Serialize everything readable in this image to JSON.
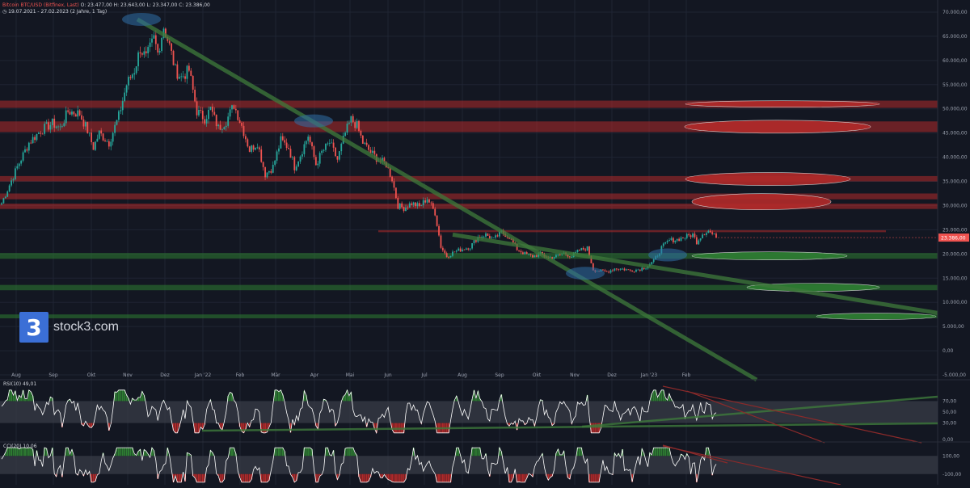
{
  "header": {
    "symbol": "Bitcoin BTC/USD (Bitfinex, Last)",
    "ohlc": "O: 23.477,00  H: 23.643,00  L: 23.347,00  C: 23.386,00",
    "range": "19.07.2021 - 27.02.2023",
    "period": "(2 Jahre, 1 Tag)"
  },
  "logo": {
    "mark": "3",
    "text": "stock3.com"
  },
  "colors": {
    "background": "#131722",
    "up": "#26a69a",
    "down": "#ef5350",
    "resistance": "#b22a2a",
    "support": "#2e7d32",
    "trendline": "#3e7a3b",
    "highlight": "#2f6fa8"
  },
  "chart_data": [
    {
      "type": "candlestick",
      "name": "Bitcoin BTC/USD",
      "x_ticks": [
        "Aug",
        "Sep",
        "Okt",
        "Nov",
        "Dez",
        "Jan '22",
        "Feb",
        "Mär",
        "Apr",
        "Mai",
        "Jun",
        "Jul",
        "Aug",
        "Sep",
        "Okt",
        "Nov",
        "Dez",
        "Jan '23",
        "Feb"
      ],
      "y_ticks": [
        "70.000,00",
        "65.000,00",
        "60.000,00",
        "55.000,00",
        "50.000,00",
        "45.000,00",
        "40.000,00",
        "35.000,00",
        "30.000,00",
        "25.000,00",
        "20.000,00",
        "15.000,00",
        "10.000,00",
        "5.000,00",
        "0,00",
        "-5.000,00"
      ],
      "ylim": [
        -5000,
        72500
      ],
      "last_price": 23386,
      "last_price_label": "23.386,00",
      "x_range": [
        "2021-07-19",
        "2023-02-27"
      ],
      "price_path": [
        [
          0,
          30500
        ],
        [
          8,
          38000
        ],
        [
          14,
          43000
        ],
        [
          20,
          45500
        ],
        [
          26,
          47000
        ],
        [
          30,
          46000
        ],
        [
          34,
          49500
        ],
        [
          40,
          49000
        ],
        [
          44,
          45500
        ],
        [
          47,
          42000
        ],
        [
          50,
          45000
        ],
        [
          55,
          43000
        ],
        [
          60,
          48500
        ],
        [
          64,
          55000
        ],
        [
          68,
          58000
        ],
        [
          71,
          62500
        ],
        [
          74,
          60500
        ],
        [
          78,
          64500
        ],
        [
          80,
          61500
        ],
        [
          83,
          67000
        ],
        [
          86,
          63000
        ],
        [
          89,
          58000
        ],
        [
          92,
          56500
        ],
        [
          96,
          58000
        ],
        [
          100,
          49500
        ],
        [
          104,
          48000
        ],
        [
          107,
          50000
        ],
        [
          111,
          46000
        ],
        [
          115,
          47500
        ],
        [
          119,
          50800
        ],
        [
          123,
          46500
        ],
        [
          127,
          41500
        ],
        [
          131,
          43000
        ],
        [
          135,
          36500
        ],
        [
          139,
          38000
        ],
        [
          143,
          43500
        ],
        [
          147,
          42000
        ],
        [
          150,
          38000
        ],
        [
          153,
          40500
        ],
        [
          157,
          44500
        ],
        [
          161,
          38500
        ],
        [
          164,
          41000
        ],
        [
          168,
          43000
        ],
        [
          172,
          39500
        ],
        [
          176,
          45000
        ],
        [
          179,
          47800
        ],
        [
          182,
          46500
        ],
        [
          185,
          43000
        ],
        [
          189,
          41000
        ],
        [
          193,
          39500
        ],
        [
          197,
          38500
        ],
        [
          200,
          35500
        ],
        [
          203,
          30000
        ],
        [
          206,
          29500
        ],
        [
          210,
          30500
        ],
        [
          214,
          29800
        ],
        [
          218,
          31500
        ],
        [
          222,
          28500
        ],
        [
          225,
          21500
        ],
        [
          228,
          19500
        ],
        [
          232,
          20500
        ],
        [
          236,
          21000
        ],
        [
          240,
          21500
        ],
        [
          244,
          23500
        ],
        [
          248,
          24000
        ],
        [
          252,
          23000
        ],
        [
          256,
          24500
        ],
        [
          260,
          23500
        ],
        [
          264,
          21000
        ],
        [
          268,
          20000
        ],
        [
          272,
          19500
        ],
        [
          276,
          20000
        ],
        [
          280,
          19200
        ],
        [
          284,
          19500
        ],
        [
          288,
          20200
        ],
        [
          292,
          19500
        ],
        [
          296,
          20800
        ],
        [
          300,
          21200
        ],
        [
          303,
          16800
        ],
        [
          306,
          16500
        ],
        [
          310,
          16300
        ],
        [
          314,
          17000
        ],
        [
          318,
          16900
        ],
        [
          322,
          16600
        ],
        [
          326,
          16800
        ],
        [
          330,
          17300
        ],
        [
          334,
          18500
        ],
        [
          338,
          21300
        ],
        [
          342,
          22800
        ],
        [
          346,
          23000
        ],
        [
          350,
          23500
        ],
        [
          354,
          24000
        ],
        [
          356,
          22500
        ],
        [
          359,
          24200
        ],
        [
          362,
          24800
        ],
        [
          366,
          23386
        ]
      ],
      "resistance_zones": [
        {
          "from": 50200,
          "to": 51700
        },
        {
          "from": 45200,
          "to": 47400
        },
        {
          "from": 35000,
          "to": 36100
        },
        {
          "from": 31300,
          "to": 32500
        },
        {
          "from": 29300,
          "to": 30400
        },
        {
          "from": 24500,
          "to": 24900
        }
      ],
      "support_zones": [
        {
          "from": 19000,
          "to": 20200
        },
        {
          "from": 12500,
          "to": 13600
        },
        {
          "from": 6700,
          "to": 7500
        }
      ]
    },
    {
      "type": "line",
      "name": "RSI(10)",
      "label": "RSI(10)",
      "last_value_label": "49,01",
      "y_ticks": [
        "70,00",
        "50,00",
        "30,00",
        "0,00"
      ],
      "ylim": [
        0,
        100
      ],
      "overbought": 70,
      "oversold": 30
    },
    {
      "type": "line",
      "name": "CCI(20)",
      "label": "CCI(20)",
      "last_value_label": "10,06",
      "y_ticks": [
        "100,00",
        "-100,00"
      ],
      "ylim": [
        -200,
        200
      ],
      "upper": 100,
      "lower": -100
    }
  ]
}
